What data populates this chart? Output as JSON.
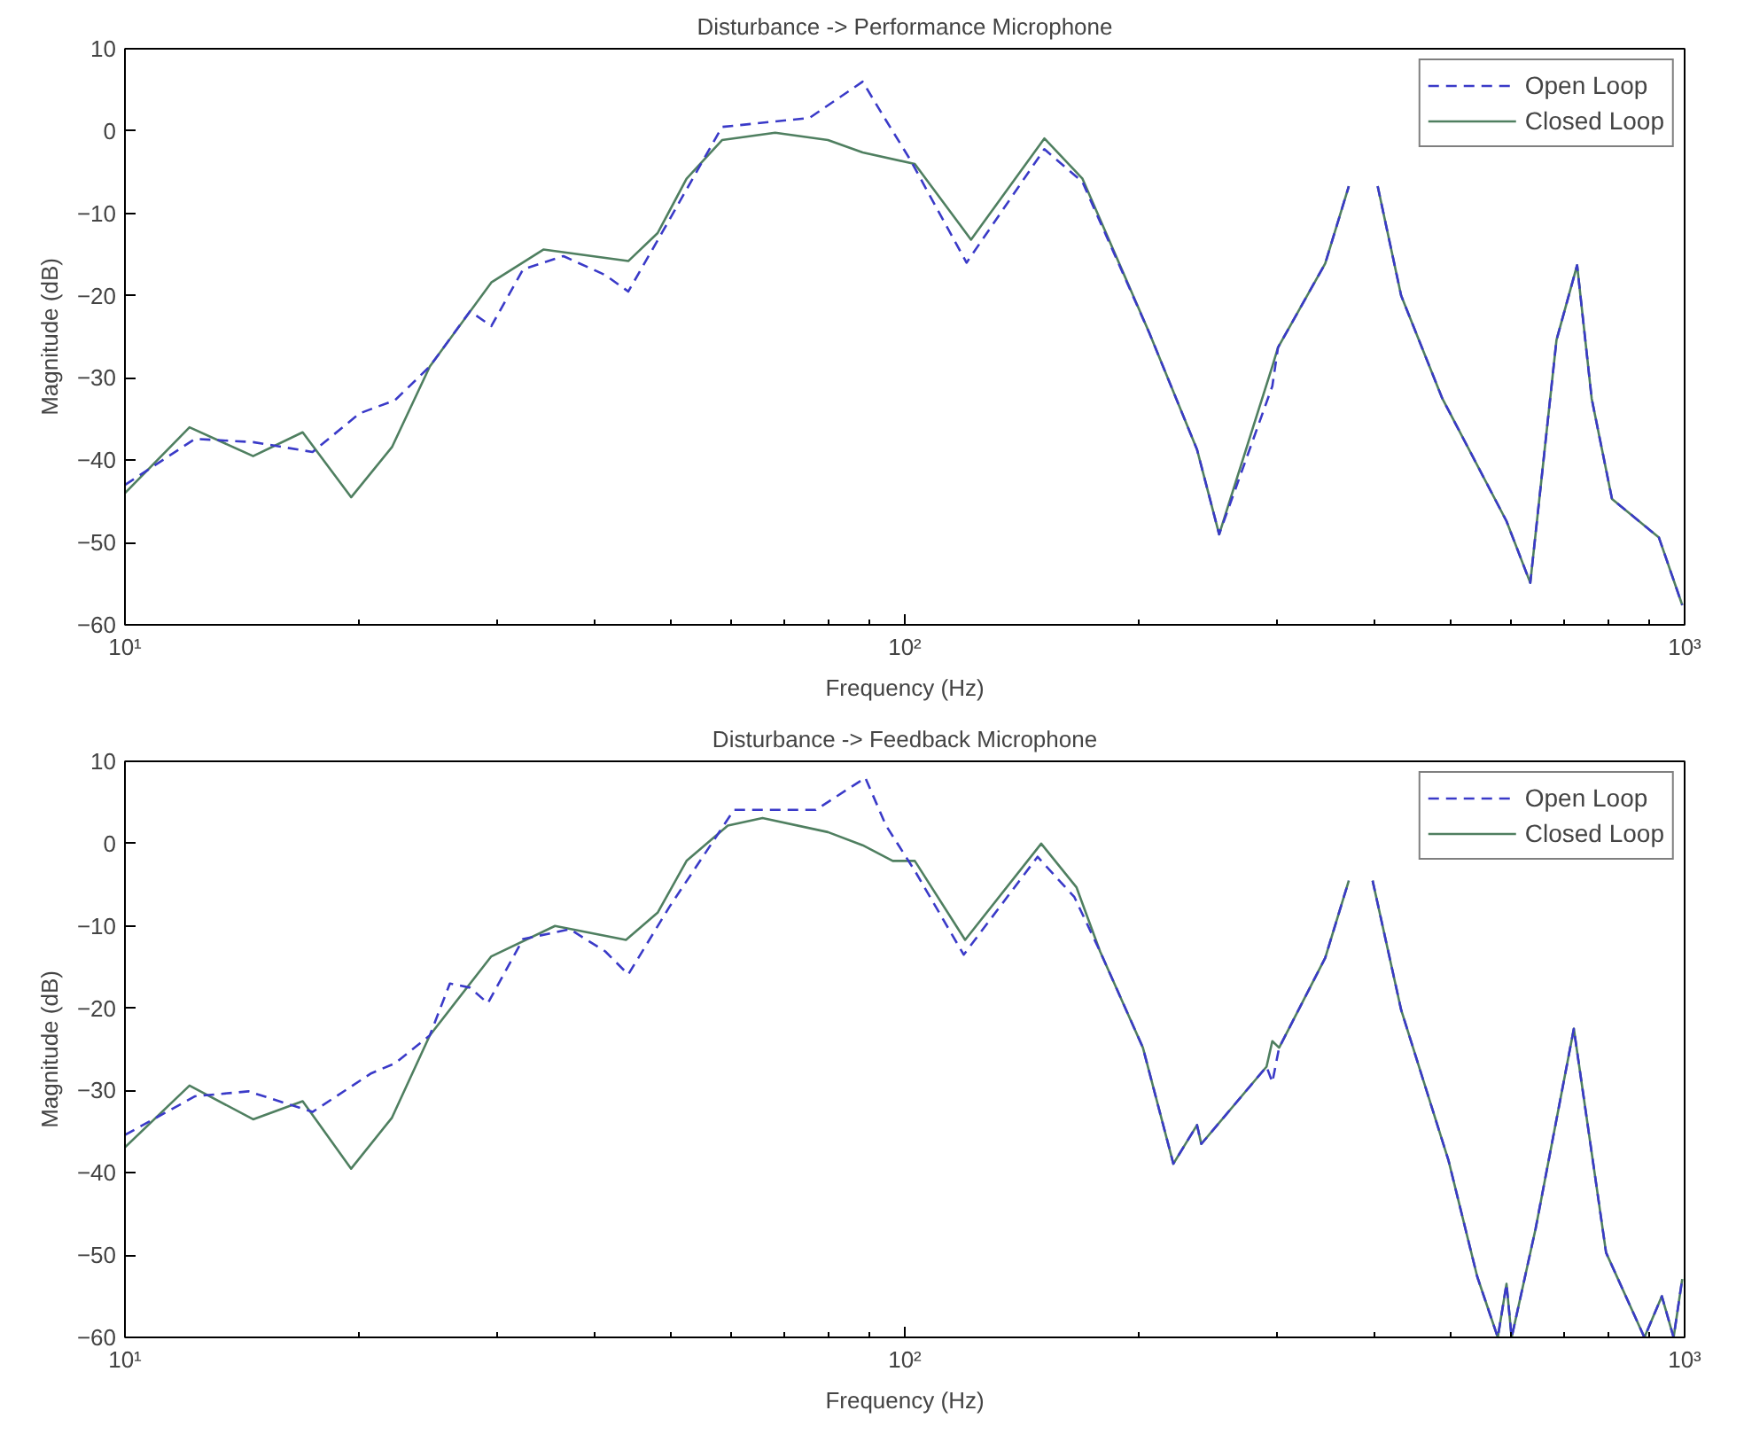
{
  "chart_data": [
    {
      "type": "line",
      "title": "Disturbance -> Performance Microphone",
      "xlabel": "Frequency (Hz)",
      "ylabel": "Magnitude (dB)",
      "log": "x",
      "grid": false,
      "legend": "top right",
      "xlim": [
        10,
        1000
      ],
      "ylim": [
        -60,
        10
      ],
      "xticks": [
        {
          "value": 10,
          "label": "10¹"
        },
        {
          "value": 100,
          "label": "10²"
        },
        {
          "value": 1000,
          "label": "10³"
        }
      ],
      "yticks": [
        -60,
        -50,
        -40,
        -30,
        -20,
        -10,
        0,
        10
      ],
      "series": [
        {
          "name": "Open Loop",
          "color": "#3a3ac8",
          "line_style": "dashed",
          "x": [
            10,
            12.3,
            14.6,
            17.4,
            20,
            22.2,
            24.6,
            27.7,
            29.5,
            32.4,
            36.5,
            41.3,
            44.2,
            49,
            58.3,
            75.5,
            88.3,
            94.6,
            101.5,
            120,
            151,
            169,
            206,
            237,
            253,
            296,
            301,
            346,
            371,
            390,
            404,
            433,
            489,
            591,
            634,
            685,
            728,
            760,
            807,
            927,
            993
          ],
          "values": [
            -43,
            -37.4,
            -37.8,
            -39,
            -34.3,
            -32.7,
            -28.6,
            -21.9,
            -23.7,
            -16.8,
            -15.2,
            -17.5,
            -19.5,
            -12.1,
            0.5,
            1.6,
            6,
            1.3,
            -3.4,
            -16,
            -2.2,
            -6.2,
            -24.6,
            -38.7,
            -49,
            -31,
            -26.3,
            -16.1,
            -6.7,
            null,
            -6.7,
            -20,
            -32.5,
            -47.4,
            -54.9,
            -25.4,
            -16.3,
            -32.5,
            -44.7,
            -49.4,
            -57.6
          ]
        },
        {
          "name": "Closed Loop",
          "color": "#4f7f60",
          "line_style": "solid",
          "x": [
            10,
            12.1,
            14.6,
            16.9,
            19.5,
            22,
            24.6,
            29.5,
            34.4,
            44.2,
            48.2,
            52.5,
            58.3,
            68.2,
            79.7,
            88.3,
            103,
            121.6,
            151,
            169,
            206,
            237,
            253,
            296,
            301,
            346,
            371,
            390,
            404,
            433,
            489,
            591,
            634,
            685,
            728,
            760,
            807,
            927,
            993
          ],
          "values": [
            -44,
            -36,
            -39.5,
            -36.6,
            -44.5,
            -38.4,
            -28.6,
            -18.4,
            -14.4,
            -15.8,
            -12.4,
            -5.8,
            -1.1,
            -0.2,
            -1.1,
            -2.6,
            -4,
            -13.2,
            -0.9,
            -5.8,
            -24.6,
            -38.7,
            -49,
            -28.6,
            -26.3,
            -16.1,
            -6.7,
            null,
            -6.7,
            -20,
            -32.5,
            -47.4,
            -54.9,
            -25.4,
            -16.3,
            -32.5,
            -44.7,
            -49.4,
            -57.6
          ]
        }
      ]
    },
    {
      "type": "line",
      "title": "Disturbance -> Feedback Microphone",
      "xlabel": "Frequency (Hz)",
      "ylabel": "Magnitude (dB)",
      "log": "x",
      "grid": false,
      "legend": "top right",
      "xlim": [
        10,
        1000
      ],
      "ylim": [
        -60,
        10
      ],
      "xticks": [
        {
          "value": 10,
          "label": "10¹"
        },
        {
          "value": 100,
          "label": "10²"
        },
        {
          "value": 1000,
          "label": "10³"
        }
      ],
      "yticks": [
        -60,
        -50,
        -40,
        -30,
        -20,
        -10,
        0,
        10
      ],
      "series": [
        {
          "name": "Open Loop",
          "color": "#3a3ac8",
          "line_style": "dashed",
          "x": [
            10,
            12.3,
            14.4,
            17.4,
            20.7,
            22.2,
            24.6,
            26.1,
            27.7,
            29.2,
            32.4,
            37.2,
            41.3,
            44.2,
            49.9,
            60.4,
            76.9,
            89,
            94.6,
            103,
            119,
            148,
            165,
            178,
            202,
            221,
            237,
            240,
            291,
            296,
            302,
            346,
            371,
            385,
            398,
            433,
            498,
            542,
            576,
            591,
            600,
            644,
            721,
            793,
            888,
            935,
            968,
            993
          ],
          "values": [
            -35.4,
            -30.7,
            -30.1,
            -32.6,
            -27.9,
            -26.7,
            -23.3,
            -17,
            -17.5,
            -19.4,
            -11.6,
            -10.4,
            -13.1,
            -15.9,
            -7.7,
            4.1,
            4.1,
            8,
            2.2,
            -3.3,
            -13.5,
            -1.6,
            -6.5,
            -13.1,
            -24.8,
            -38.9,
            -34.2,
            -36.5,
            -27.1,
            -29,
            -24.8,
            -13.9,
            -4.5,
            null,
            -4.5,
            -20.2,
            -38.5,
            -52.6,
            -60,
            -53.5,
            -60,
            -46.8,
            -22.5,
            -49.7,
            -60,
            -55,
            -60,
            -52.9
          ]
        },
        {
          "name": "Closed Loop",
          "color": "#4f7f60",
          "line_style": "solid",
          "x": [
            10,
            12.1,
            14.6,
            16.9,
            19.5,
            22,
            24.6,
            29.5,
            35.6,
            43.9,
            48.2,
            52.5,
            59.3,
            65.7,
            79.7,
            88.3,
            96.5,
            103,
            119.5,
            149.6,
            166,
            178,
            202,
            221,
            237,
            240,
            291,
            296,
            302,
            346,
            371,
            385,
            398,
            433,
            498,
            542,
            576,
            591,
            600,
            644,
            721,
            793,
            888,
            935,
            968,
            993
          ],
          "values": [
            -36.9,
            -29.4,
            -33.5,
            -31.3,
            -39.5,
            -33.3,
            -23.3,
            -13.7,
            -10,
            -11.7,
            -8.4,
            -2.1,
            2.2,
            3.1,
            1.4,
            -0.2,
            -2.1,
            -2.1,
            -11.7,
            0,
            -5.3,
            -13.1,
            -24.8,
            -38.9,
            -34.2,
            -36.5,
            -27.1,
            -24,
            -24.8,
            -13.9,
            -4.5,
            null,
            -4.5,
            -20.2,
            -38.5,
            -52.6,
            -60,
            -53.5,
            -60,
            -46.8,
            -22.5,
            -49.7,
            -60,
            -55,
            -60,
            -52.9
          ]
        }
      ]
    }
  ]
}
